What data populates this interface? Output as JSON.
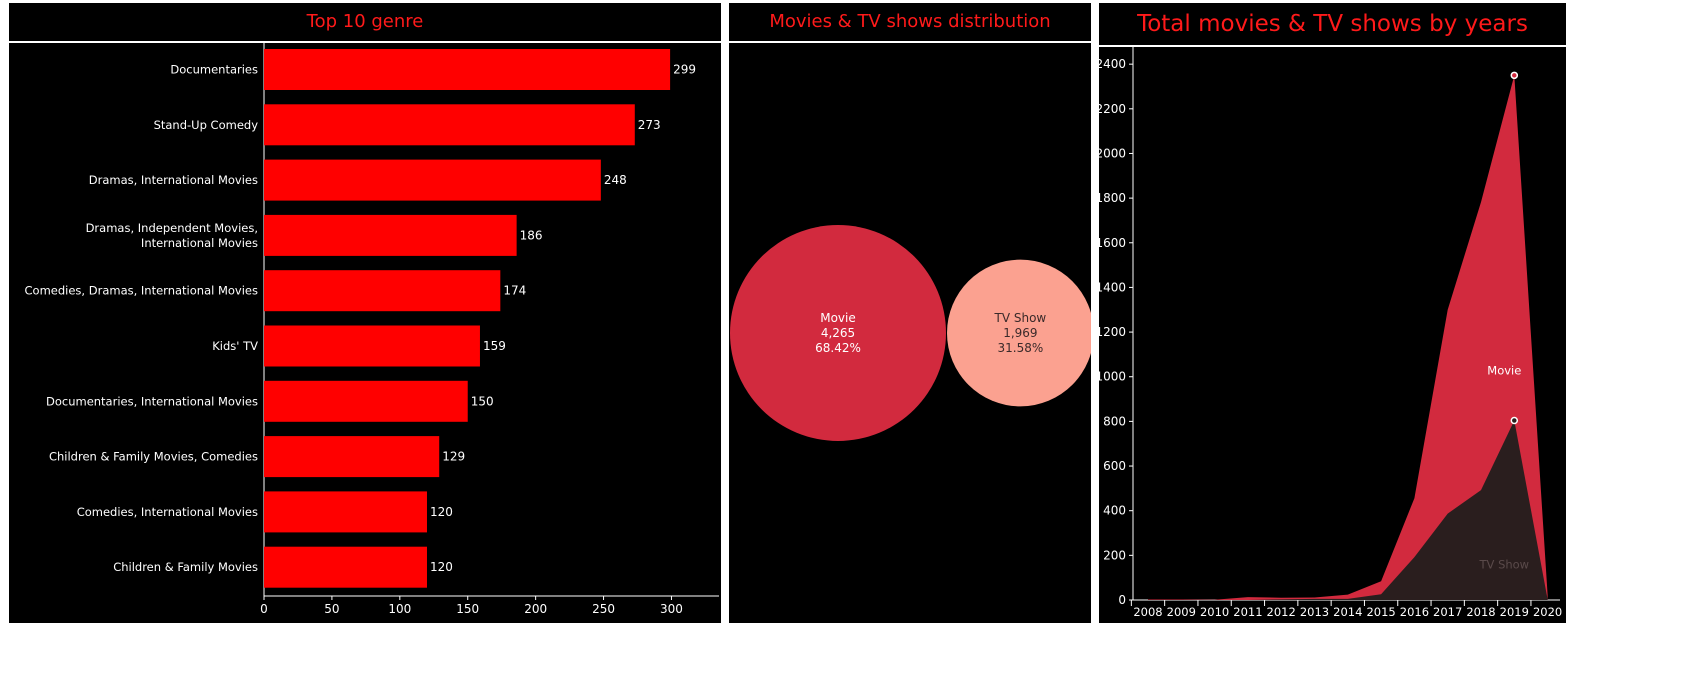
{
  "panels": {
    "genre": {
      "title": "Top 10 genre"
    },
    "distribution": {
      "title": "Movies & TV shows distribution"
    },
    "years": {
      "title": "Total movies & TV shows by years"
    }
  },
  "colors": {
    "background": "#000000",
    "title": "#ff1a1a",
    "bar": "#ff0000",
    "movie": "#d22a3e",
    "tvshow": "#fba190",
    "tvshow_area": "#2a1e1e",
    "text": "#ffffff"
  },
  "chart_data": [
    {
      "type": "bar",
      "orientation": "horizontal",
      "title": "Top 10 genre",
      "categories": [
        "Documentaries",
        "Stand-Up Comedy",
        "Dramas, International Movies",
        "Dramas, Independent Movies, International Movies",
        "Comedies, Dramas, International Movies",
        "Kids' TV",
        "Documentaries, International Movies",
        "Children & Family Movies, Comedies",
        "Comedies, International Movies",
        "Children & Family Movies"
      ],
      "values": [
        299,
        273,
        248,
        186,
        174,
        159,
        150,
        129,
        120,
        120
      ],
      "xlim": [
        0,
        335
      ],
      "xticks": [
        0,
        50,
        100,
        150,
        200,
        250,
        300
      ],
      "grid": false
    },
    {
      "type": "bubble",
      "title": "Movies & TV shows distribution",
      "items": [
        {
          "label": "Movie",
          "value_label": "4,265",
          "percent_label": "68.42%",
          "value": 4265
        },
        {
          "label": "TV Show",
          "value_label": "1,969",
          "percent_label": "31.58%",
          "value": 1969
        }
      ]
    },
    {
      "type": "area",
      "title": "Total movies & TV shows by years",
      "x": [
        2008,
        2009,
        2010,
        2011,
        2012,
        2013,
        2014,
        2015,
        2016,
        2017,
        2018,
        2019,
        2020
      ],
      "series": [
        {
          "name": "Movie",
          "values": [
            2,
            2,
            1,
            13,
            7,
            6,
            19,
            58,
            264,
            913,
            1290,
            1546,
            21
          ]
        },
        {
          "name": "TV Show",
          "values": [
            0,
            0,
            0,
            0,
            3,
            5,
            5,
            26,
            192,
            387,
            492,
            804,
            3
          ]
        }
      ],
      "stacked": true,
      "ylim": [
        0,
        2450
      ],
      "yticks": [
        0,
        200,
        400,
        600,
        800,
        1000,
        1200,
        1400,
        1600,
        1800,
        2000,
        2200,
        2400
      ],
      "grid": false
    }
  ]
}
